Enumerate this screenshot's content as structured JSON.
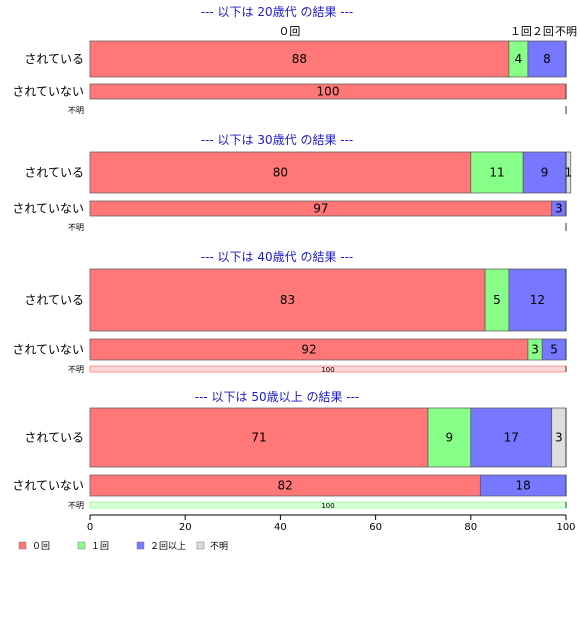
{
  "chart_data": {
    "type": "bar",
    "orientation": "horizontal",
    "stacked": true,
    "xlim": [
      0,
      100
    ],
    "x_ticks": [
      0,
      20,
      40,
      60,
      80,
      100
    ],
    "grid": false,
    "legend_position": "bottom-left",
    "series": [
      {
        "name": "０回",
        "color": "#ff7777"
      },
      {
        "name": "１回",
        "color": "#88ff88"
      },
      {
        "name": "２回以上",
        "color": "#7777ff"
      },
      {
        "name": "不明",
        "color": "#dddddd"
      }
    ],
    "top_labels": [
      {
        "text": "０回",
        "series": 0
      },
      {
        "text": "１回",
        "series": 1
      },
      {
        "text": "２回",
        "series": 2
      },
      {
        "text": "不明",
        "series": 3
      }
    ],
    "panels": [
      {
        "title": "--- 以下は 20歳代 の結果 ---",
        "rows": [
          {
            "label": "されている",
            "values": [
              88,
              4,
              8,
              0
            ],
            "labels": [
              "88",
              "4",
              "8",
              ""
            ]
          },
          {
            "label": "されていない",
            "values": [
              100,
              0,
              0,
              0
            ],
            "labels": [
              "100",
              "",
              "",
              ""
            ]
          },
          {
            "label": "不明",
            "values": [
              0,
              0,
              0,
              0
            ],
            "labels": [
              "",
              "",
              "",
              ""
            ]
          }
        ]
      },
      {
        "title": "--- 以下は 30歳代 の結果 ---",
        "rows": [
          {
            "label": "されている",
            "values": [
              80,
              11,
              9,
              1
            ],
            "labels": [
              "80",
              "11",
              "9",
              "1"
            ]
          },
          {
            "label": "されていない",
            "values": [
              97,
              0,
              3,
              0
            ],
            "labels": [
              "97",
              "",
              "3",
              ""
            ]
          },
          {
            "label": "不明",
            "values": [
              0,
              0,
              0,
              0
            ],
            "labels": [
              "",
              "",
              "",
              ""
            ]
          }
        ]
      },
      {
        "title": "--- 以下は 40歳代 の結果 ---",
        "rows": [
          {
            "label": "されている",
            "values": [
              83,
              5,
              12,
              0
            ],
            "labels": [
              "83",
              "5",
              "12",
              ""
            ]
          },
          {
            "label": "されていない",
            "values": [
              92,
              3,
              5,
              0
            ],
            "labels": [
              "92",
              "3",
              "5",
              ""
            ]
          },
          {
            "label": "不明",
            "values": [
              100,
              0,
              0,
              0
            ],
            "labels": [
              "100",
              "",
              "",
              ""
            ]
          }
        ]
      },
      {
        "title": "--- 以下は 50歳以上 の結果 ---",
        "rows": [
          {
            "label": "されている",
            "values": [
              71,
              9,
              17,
              3
            ],
            "labels": [
              "71",
              "9",
              "17",
              "3"
            ]
          },
          {
            "label": "されていない",
            "values": [
              82,
              0,
              18,
              0
            ],
            "labels": [
              "82",
              "",
              "18",
              ""
            ]
          },
          {
            "label": "不明",
            "values": [
              0,
              100,
              0,
              0
            ],
            "labels": [
              "",
              "100",
              "",
              ""
            ]
          }
        ]
      }
    ]
  }
}
